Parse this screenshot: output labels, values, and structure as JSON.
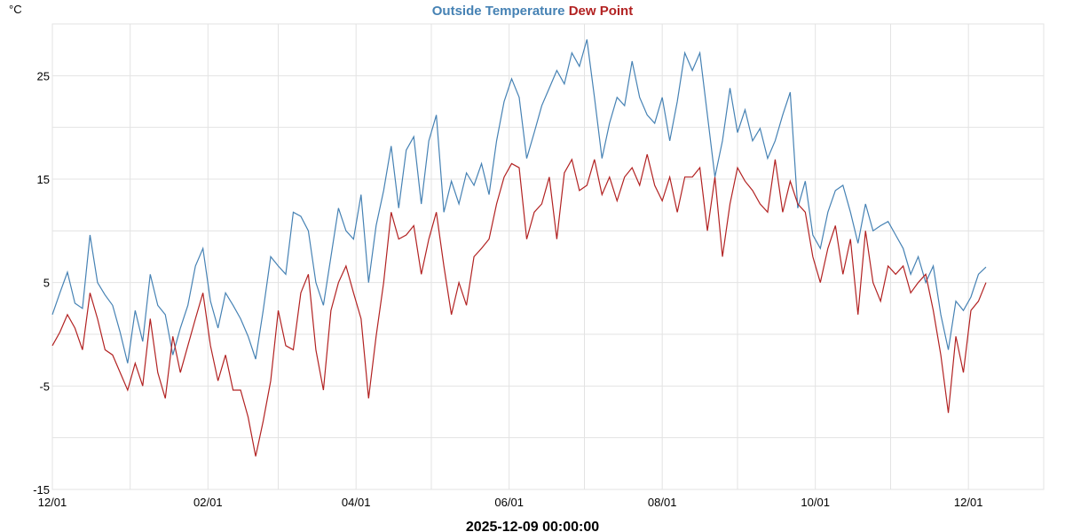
{
  "chart_data": {
    "type": "line",
    "ylabel": "°C",
    "xlabel": "2025-12-09 00:00:00",
    "x": [
      0,
      3,
      6,
      9,
      12,
      15,
      18,
      21,
      24,
      27,
      30,
      33,
      36,
      39,
      42,
      45,
      48,
      51,
      54,
      57,
      60,
      63,
      66,
      69,
      72,
      75,
      78,
      81,
      84,
      87,
      90,
      93,
      96,
      99,
      102,
      105,
      108,
      111,
      114,
      117,
      120,
      123,
      126,
      129,
      132,
      135,
      138,
      141,
      144,
      147,
      150,
      153,
      156,
      159,
      162,
      165,
      168,
      171,
      174,
      177,
      180,
      183,
      186,
      189,
      192,
      195,
      198,
      201,
      204,
      207,
      210,
      213,
      216,
      219,
      222,
      225,
      228,
      231,
      234,
      237,
      240,
      243,
      246,
      249,
      252,
      255,
      258,
      261,
      264,
      267,
      270,
      273,
      276,
      279,
      282,
      285,
      288,
      291,
      294,
      297,
      300,
      303,
      306,
      309,
      312,
      315,
      318,
      321,
      324,
      327,
      330,
      333,
      336,
      339,
      342,
      345,
      348,
      351,
      354,
      357,
      360,
      363,
      366,
      369,
      372
    ],
    "series": [
      {
        "name": "Outside Temperature",
        "color": "#4682b4",
        "values": [
          1.9,
          4,
          6,
          3,
          2.5,
          9.6,
          5,
          3.8,
          2.8,
          0.2,
          -2.8,
          2.3,
          -0.7,
          5.8,
          2.8,
          1.9,
          -2,
          0.6,
          2.8,
          6.6,
          8.3,
          3.2,
          0.6,
          4,
          2.8,
          1.5,
          -0.2,
          -2.4,
          2.3,
          7.5,
          6.6,
          5.8,
          11.8,
          11.4,
          10,
          5,
          2.8,
          7.5,
          12.2,
          10,
          9.2,
          13.5,
          5,
          10.5,
          13.9,
          18.2,
          12.2,
          17.8,
          19.1,
          12.6,
          18.7,
          21.2,
          11.8,
          14.8,
          12.6,
          15.6,
          14.4,
          16.5,
          13.5,
          18.7,
          22.5,
          24.7,
          22.9,
          17,
          19.5,
          22.1,
          23.8,
          25.5,
          24.2,
          27.2,
          25.9,
          28.5,
          22.9,
          17,
          20.4,
          22.9,
          22.1,
          26.4,
          22.9,
          21.2,
          20.4,
          22.9,
          18.7,
          22.5,
          27.2,
          25.5,
          27.2,
          21.2,
          15.2,
          18.7,
          23.8,
          19.5,
          21.7,
          18.7,
          19.9,
          17,
          18.7,
          21.2,
          23.4,
          12.2,
          14.8,
          9.6,
          8.3,
          11.8,
          13.9,
          14.4,
          11.8,
          8.8,
          12.6,
          10,
          10.5,
          10.9,
          9.6,
          8.3,
          5.8,
          7.5,
          5,
          6.6,
          1.9,
          -1.5,
          3.2,
          2.3,
          3.6,
          5.8,
          6.5
        ]
      },
      {
        "name": "Dew Point",
        "color": "#b22222",
        "values": [
          -1.1,
          0.2,
          1.9,
          0.6,
          -1.5,
          4,
          1.5,
          -1.5,
          -2,
          -3.7,
          -5.4,
          -2.8,
          -5,
          1.5,
          -3.7,
          -6.2,
          -0.2,
          -3.7,
          -1.1,
          1.5,
          4,
          -1.1,
          -4.5,
          -2,
          -5.4,
          -5.4,
          -8,
          -11.8,
          -8.4,
          -4.5,
          2.3,
          -1.1,
          -1.5,
          4,
          5.8,
          -1.5,
          -5.4,
          2.3,
          5,
          6.6,
          4,
          1.5,
          -6.2,
          -0.2,
          5,
          11.8,
          9.2,
          9.6,
          10.5,
          5.8,
          9.2,
          11.8,
          6.6,
          1.9,
          5,
          2.8,
          7.5,
          8.3,
          9.2,
          12.6,
          15.2,
          16.5,
          16.1,
          9.2,
          11.8,
          12.6,
          15.2,
          9.2,
          15.6,
          16.9,
          13.9,
          14.4,
          16.9,
          13.5,
          15.2,
          12.9,
          15.2,
          16.1,
          14.4,
          17.4,
          14.4,
          12.9,
          15.2,
          11.8,
          15.2,
          15.2,
          16.1,
          10,
          15.2,
          7.5,
          12.6,
          16.1,
          14.8,
          13.9,
          12.6,
          11.8,
          16.9,
          11.8,
          14.8,
          12.6,
          11.8,
          7.5,
          5,
          8.3,
          10.5,
          5.8,
          9.2,
          1.9,
          10,
          5,
          3.2,
          6.6,
          5.8,
          6.6,
          4,
          5,
          5.8,
          2.3,
          -2,
          -7.6,
          -0.2,
          -3.7,
          2.3,
          3.2,
          5
        ]
      }
    ],
    "xlim": [
      0,
      395
    ],
    "xticks": [
      {
        "value": 0,
        "label": "12/01"
      },
      {
        "value": 62,
        "label": "02/01"
      },
      {
        "value": 121,
        "label": "04/01"
      },
      {
        "value": 182,
        "label": "06/01"
      },
      {
        "value": 243,
        "label": "08/01"
      },
      {
        "value": 304,
        "label": "10/01"
      },
      {
        "value": 365,
        "label": "12/01"
      }
    ],
    "xgrid_minor": [
      31,
      90,
      151,
      212,
      273,
      334
    ],
    "ylim": [
      -15,
      30
    ],
    "yticks": [
      -15,
      -5,
      5,
      15,
      25
    ],
    "ygrid_minor": [
      -10,
      0,
      10,
      20,
      30
    ],
    "grid": true
  }
}
